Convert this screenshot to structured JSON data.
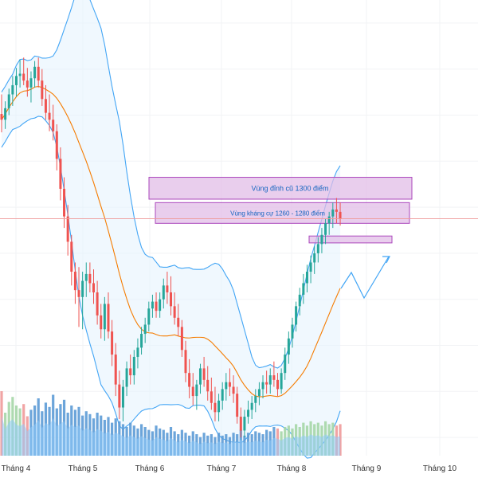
{
  "chart_data": {
    "type": "candlestick",
    "grid": true,
    "colors": {
      "up": "#26a69a",
      "down": "#ef5350",
      "band_line": "#42a5f5",
      "band_fill": "#e3f2fd",
      "ma_line": "#f57c00",
      "zone_fill": "#e1bee7",
      "zone_border": "#ab47bc",
      "zone_text": "#1565c0",
      "projection": "#42a5f5",
      "volume_band": "#90caf9",
      "volume_bar": "#5c9bd6",
      "volume_up": "#a5d6a7",
      "volume_down": "#ef9a9a",
      "current_price_line": "#ef9a9a"
    },
    "x_axis": {
      "ticks": [
        "Tháng 4",
        "Tháng 5",
        "Tháng 6",
        "Tháng 7",
        "Tháng 8",
        "Tháng 9",
        "Tháng 10"
      ]
    },
    "price_range": [
      1060,
      1460
    ],
    "current_price": 1270,
    "zones": [
      {
        "label": "Vùng đỉnh cũ 1300 điểm",
        "low": 1287,
        "high": 1306
      },
      {
        "label": "Vùng kháng cự 1260 - 1280 điểm",
        "low": 1266,
        "high": 1284
      },
      {
        "label": "",
        "low": 1249,
        "high": 1255
      }
    ],
    "candles": [
      [
        1361,
        1378,
        1345,
        1356
      ],
      [
        1356,
        1372,
        1348,
        1366
      ],
      [
        1366,
        1383,
        1360,
        1378
      ],
      [
        1378,
        1394,
        1368,
        1386
      ],
      [
        1386,
        1401,
        1376,
        1394
      ],
      [
        1394,
        1408,
        1384,
        1396
      ],
      [
        1396,
        1410,
        1386,
        1390
      ],
      [
        1390,
        1401,
        1376,
        1384
      ],
      [
        1384,
        1398,
        1371,
        1392
      ],
      [
        1392,
        1407,
        1384,
        1402
      ],
      [
        1402,
        1410,
        1384,
        1390
      ],
      [
        1390,
        1400,
        1368,
        1374
      ],
      [
        1374,
        1386,
        1356,
        1362
      ],
      [
        1362,
        1378,
        1346,
        1356
      ],
      [
        1356,
        1369,
        1338,
        1346
      ],
      [
        1346,
        1352,
        1312,
        1322
      ],
      [
        1322,
        1332,
        1286,
        1296
      ],
      [
        1296,
        1306,
        1262,
        1272
      ],
      [
        1272,
        1282,
        1238,
        1250
      ],
      [
        1250,
        1256,
        1212,
        1224
      ],
      [
        1224,
        1232,
        1196,
        1208
      ],
      [
        1208,
        1228,
        1176,
        1202
      ],
      [
        1202,
        1224,
        1174,
        1216
      ],
      [
        1216,
        1232,
        1202,
        1222
      ],
      [
        1222,
        1232,
        1206,
        1214
      ],
      [
        1214,
        1226,
        1196,
        1206
      ],
      [
        1206,
        1216,
        1178,
        1186
      ],
      [
        1186,
        1196,
        1166,
        1174
      ],
      [
        1174,
        1202,
        1164,
        1196
      ],
      [
        1196,
        1206,
        1166,
        1172
      ],
      [
        1172,
        1182,
        1142,
        1152
      ],
      [
        1152,
        1162,
        1116,
        1126
      ],
      [
        1126,
        1138,
        1096,
        1106
      ],
      [
        1106,
        1130,
        1094,
        1124
      ],
      [
        1124,
        1146,
        1116,
        1140
      ],
      [
        1140,
        1152,
        1126,
        1134
      ],
      [
        1134,
        1156,
        1126,
        1150
      ],
      [
        1150,
        1166,
        1140,
        1158
      ],
      [
        1158,
        1176,
        1152,
        1170
      ],
      [
        1170,
        1184,
        1162,
        1178
      ],
      [
        1178,
        1198,
        1172,
        1192
      ],
      [
        1192,
        1204,
        1184,
        1198
      ],
      [
        1198,
        1206,
        1184,
        1190
      ],
      [
        1190,
        1206,
        1184,
        1200
      ],
      [
        1200,
        1218,
        1192,
        1212
      ],
      [
        1212,
        1224,
        1196,
        1206
      ],
      [
        1206,
        1220,
        1186,
        1194
      ],
      [
        1194,
        1206,
        1178,
        1184
      ],
      [
        1184,
        1196,
        1168,
        1176
      ],
      [
        1176,
        1182,
        1150,
        1156
      ],
      [
        1156,
        1164,
        1128,
        1136
      ],
      [
        1136,
        1148,
        1114,
        1124
      ],
      [
        1124,
        1136,
        1108,
        1116
      ],
      [
        1116,
        1130,
        1104,
        1126
      ],
      [
        1126,
        1144,
        1118,
        1140
      ],
      [
        1140,
        1150,
        1124,
        1130
      ],
      [
        1130,
        1142,
        1112,
        1120
      ],
      [
        1120,
        1132,
        1104,
        1110
      ],
      [
        1110,
        1124,
        1094,
        1102
      ],
      [
        1102,
        1118,
        1094,
        1112
      ],
      [
        1112,
        1128,
        1104,
        1122
      ],
      [
        1122,
        1136,
        1112,
        1128
      ],
      [
        1128,
        1140,
        1116,
        1124
      ],
      [
        1124,
        1134,
        1110,
        1118
      ],
      [
        1118,
        1124,
        1092,
        1098
      ],
      [
        1098,
        1106,
        1080,
        1086
      ],
      [
        1086,
        1104,
        1080,
        1098
      ],
      [
        1098,
        1112,
        1092,
        1104
      ],
      [
        1104,
        1116,
        1096,
        1110
      ],
      [
        1110,
        1122,
        1102,
        1116
      ],
      [
        1116,
        1128,
        1108,
        1122
      ],
      [
        1122,
        1134,
        1114,
        1128
      ],
      [
        1128,
        1138,
        1118,
        1126
      ],
      [
        1126,
        1140,
        1118,
        1134
      ],
      [
        1134,
        1146,
        1124,
        1130
      ],
      [
        1130,
        1136,
        1116,
        1122
      ],
      [
        1122,
        1140,
        1118,
        1136
      ],
      [
        1136,
        1158,
        1130,
        1152
      ],
      [
        1152,
        1172,
        1144,
        1166
      ],
      [
        1166,
        1184,
        1158,
        1178
      ],
      [
        1178,
        1198,
        1172,
        1194
      ],
      [
        1194,
        1210,
        1186,
        1204
      ],
      [
        1204,
        1222,
        1196,
        1214
      ],
      [
        1214,
        1230,
        1206,
        1224
      ],
      [
        1224,
        1238,
        1214,
        1232
      ],
      [
        1232,
        1246,
        1222,
        1240
      ],
      [
        1240,
        1254,
        1232,
        1248
      ],
      [
        1248,
        1262,
        1240,
        1256
      ],
      [
        1256,
        1270,
        1248,
        1266
      ],
      [
        1266,
        1276,
        1256,
        1272
      ],
      [
        1272,
        1284,
        1262,
        1278
      ],
      [
        1278,
        1288,
        1266,
        1276
      ],
      [
        1276,
        1284,
        1264,
        1270
      ]
    ],
    "volume_levels": [
      0.9,
      0.6,
      0.75,
      0.82,
      0.7,
      0.66,
      0.72,
      0.55,
      0.64,
      0.7,
      0.8,
      0.62,
      0.74,
      0.68,
      0.85,
      0.66,
      0.72,
      0.78,
      0.6,
      0.7,
      0.64,
      0.68,
      0.56,
      0.62,
      0.58,
      0.52,
      0.6,
      0.56,
      0.5,
      0.54,
      0.46,
      0.52,
      0.48,
      0.44,
      0.4,
      0.46,
      0.42,
      0.38,
      0.44,
      0.4,
      0.36,
      0.34,
      0.42,
      0.38,
      0.36,
      0.32,
      0.4,
      0.34,
      0.3,
      0.36,
      0.32,
      0.28,
      0.34,
      0.3,
      0.26,
      0.32,
      0.28,
      0.3,
      0.26,
      0.32,
      0.28,
      0.3,
      0.26,
      0.32,
      0.3,
      0.36,
      0.28,
      0.32,
      0.3,
      0.34,
      0.32,
      0.3,
      0.36,
      0.34,
      0.4,
      0.38,
      0.34,
      0.4,
      0.42,
      0.38,
      0.44,
      0.4,
      0.46,
      0.42,
      0.48,
      0.44,
      0.46,
      0.42,
      0.48,
      0.44,
      0.46,
      0.42,
      0.44
    ]
  }
}
